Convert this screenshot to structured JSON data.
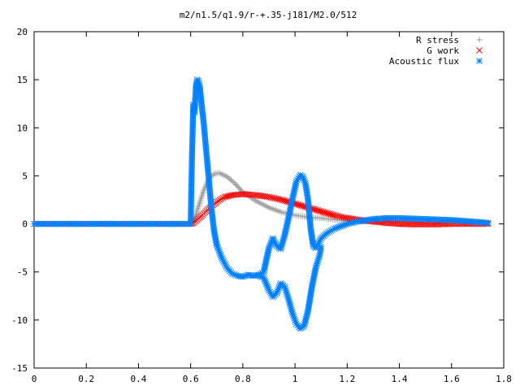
{
  "chart_data": {
    "type": "scatter",
    "title": "m2/n1.5/q1.9/r-+.35-j181/M2.0/512",
    "xlabel": "",
    "ylabel": "",
    "xlim": [
      0,
      1.8
    ],
    "ylim": [
      -15,
      20
    ],
    "xticks": [
      "0",
      "0.2",
      "0.4",
      "0.6",
      "0.8",
      "1",
      "1.2",
      "1.4",
      "1.6",
      "1.8"
    ],
    "yticks": [
      "-15",
      "-10",
      "-5",
      "0",
      "5",
      "10",
      "15",
      "20"
    ],
    "grid": false,
    "legend_position": "top-right",
    "series": [
      {
        "name": "R stress",
        "marker": "plus",
        "color": "#a0a0a0",
        "x": [
          0.0,
          0.3,
          0.6,
          0.61,
          0.63,
          0.65,
          0.67,
          0.69,
          0.71,
          0.74,
          0.77,
          0.8,
          0.85,
          0.9,
          0.95,
          1.0,
          1.05,
          1.1,
          1.15,
          1.2,
          1.25,
          1.3,
          1.35,
          1.4,
          1.45,
          1.5,
          1.55,
          1.6,
          1.65,
          1.7,
          1.74
        ],
        "y": [
          0.0,
          0.0,
          0.0,
          0.1,
          1.8,
          3.5,
          4.7,
          5.2,
          5.3,
          4.9,
          4.2,
          3.3,
          2.4,
          1.7,
          1.2,
          0.9,
          0.7,
          0.6,
          0.45,
          0.3,
          0.25,
          0.25,
          0.3,
          0.35,
          0.35,
          0.35,
          0.3,
          0.25,
          0.2,
          0.15,
          0.1
        ]
      },
      {
        "name": "G work",
        "marker": "cross",
        "color": "#ff0000",
        "x": [
          0.0,
          0.3,
          0.6,
          0.61,
          0.64,
          0.67,
          0.7,
          0.73,
          0.76,
          0.8,
          0.85,
          0.9,
          0.95,
          1.0,
          1.05,
          1.1,
          1.15,
          1.2,
          1.25,
          1.3,
          1.35,
          1.4,
          1.45,
          1.5,
          1.55,
          1.6,
          1.65,
          1.7,
          1.74
        ],
        "y": [
          0.0,
          0.0,
          0.0,
          0.1,
          0.8,
          1.6,
          2.3,
          2.8,
          3.0,
          3.1,
          3.0,
          2.8,
          2.5,
          2.1,
          1.7,
          1.3,
          0.9,
          0.6,
          0.4,
          0.25,
          0.1,
          0.0,
          -0.05,
          -0.05,
          -0.05,
          0.0,
          0.0,
          0.0,
          0.0
        ]
      },
      {
        "name": "Acoustic flux",
        "marker": "star",
        "color": "#0080ff",
        "x": [
          0.0,
          0.3,
          0.6,
          0.605,
          0.61,
          0.615,
          0.62,
          0.625,
          0.63,
          0.635,
          0.64,
          0.65,
          0.66,
          0.67,
          0.68,
          0.69,
          0.7,
          0.72,
          0.74,
          0.76,
          0.78,
          0.8,
          0.82,
          0.84,
          0.86,
          0.88,
          0.9,
          0.915,
          0.93,
          0.945,
          0.96,
          0.975,
          0.99,
          1.005,
          1.02,
          1.03,
          1.04,
          1.05,
          1.06,
          1.07,
          1.08,
          1.09,
          1.1,
          1.12,
          1.15,
          1.2,
          1.25,
          1.3,
          1.35,
          1.4,
          1.45,
          1.5,
          1.55,
          1.6,
          1.65,
          1.7,
          1.74
        ],
        "y": [
          0.0,
          0.0,
          0.0,
          6.9,
          12.4,
          11.6,
          14.3,
          15.0,
          14.9,
          14.3,
          12.9,
          10.5,
          7.5,
          4.5,
          1.5,
          -0.8,
          -2.2,
          -3.6,
          -4.6,
          -5.2,
          -5.4,
          -5.5,
          -5.3,
          -5.4,
          -5.3,
          -5.0,
          -2.5,
          -1.5,
          -2.3,
          -2.6,
          -1.2,
          0.6,
          2.6,
          4.4,
          5.1,
          4.9,
          4.2,
          2.5,
          -0.5,
          -2.3,
          -2.5,
          -2.0,
          -1.5,
          -1.0,
          -0.5,
          0.0,
          0.3,
          0.5,
          0.6,
          0.6,
          0.55,
          0.5,
          0.45,
          0.4,
          0.3,
          0.2,
          0.1
        ]
      },
      {
        "name": "",
        "marker": "star",
        "color": "#0080ff",
        "x": [
          0.86,
          0.88,
          0.9,
          0.915,
          0.93,
          0.945,
          0.96,
          0.975,
          0.99,
          1.005,
          1.02,
          1.035,
          1.05,
          1.065,
          1.08,
          1.095,
          1.1
        ],
        "y": [
          -5.4,
          -5.6,
          -6.9,
          -7.6,
          -7.2,
          -6.2,
          -6.5,
          -7.8,
          -9.3,
          -10.4,
          -10.9,
          -10.6,
          -9.0,
          -6.5,
          -4.5,
          -3.2,
          -2.4
        ]
      }
    ]
  }
}
